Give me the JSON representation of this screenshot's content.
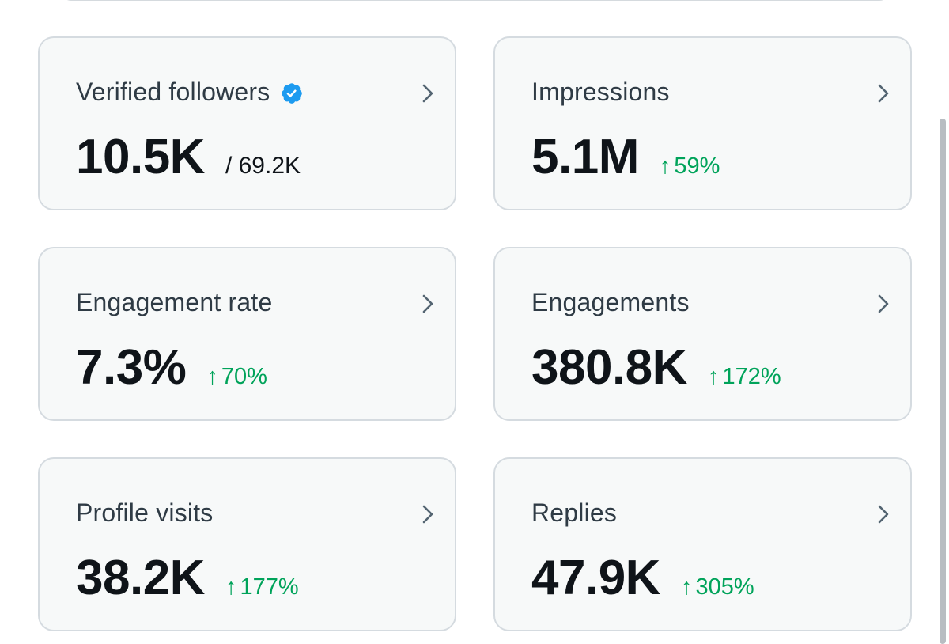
{
  "colors": {
    "accent_blue": "#1d9bf0",
    "positive_green": "#00a35a",
    "card_background": "#f7f9f9",
    "card_border": "#d5dbe0"
  },
  "metrics": [
    {
      "label": "Verified followers",
      "icon": "verified-badge-icon",
      "value": "10.5K",
      "total": "/ 69.2K"
    },
    {
      "label": "Impressions",
      "value": "5.1M",
      "change": "59%"
    },
    {
      "label": "Engagement rate",
      "value": "7.3%",
      "change": "70%"
    },
    {
      "label": "Engagements",
      "value": "380.8K",
      "change": "172%"
    },
    {
      "label": "Profile visits",
      "value": "38.2K",
      "change": "177%"
    },
    {
      "label": "Replies",
      "value": "47.9K",
      "change": "305%"
    }
  ],
  "arrow_glyph": "↑"
}
